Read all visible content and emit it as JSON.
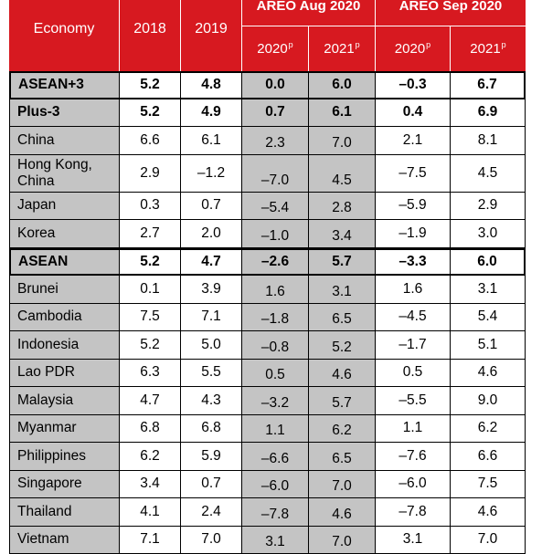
{
  "header": {
    "economy": "Economy",
    "y2018": "2018",
    "y2019": "2019",
    "group_aug": "AREO Aug 2020",
    "group_sep": "AREO Sep 2020",
    "sub_2020": "2020",
    "sub_2021": "2021",
    "proj_mark": "p"
  },
  "rows": [
    {
      "economy": "ASEAN+3",
      "y2018": "5.2",
      "y2019": "4.8",
      "aug2020": "0.0",
      "aug2021": "6.0",
      "sep2020": "–0.3",
      "sep2021": "6.7"
    },
    {
      "economy": "Plus-3",
      "y2018": "5.2",
      "y2019": "4.9",
      "aug2020": "0.7",
      "aug2021": "6.1",
      "sep2020": "0.4",
      "sep2021": "6.9"
    },
    {
      "economy": "China",
      "y2018": "6.6",
      "y2019": "6.1",
      "aug2020": "2.3",
      "aug2021": "7.0",
      "sep2020": "2.1",
      "sep2021": "8.1"
    },
    {
      "economy": "Hong Kong, China",
      "y2018": "2.9",
      "y2019": "–1.2",
      "aug2020": "–7.0",
      "aug2021": "4.5",
      "sep2020": "–7.5",
      "sep2021": "4.5"
    },
    {
      "economy": "Japan",
      "y2018": "0.3",
      "y2019": "0.7",
      "aug2020": "–5.4",
      "aug2021": "2.8",
      "sep2020": "–5.9",
      "sep2021": "2.9"
    },
    {
      "economy": "Korea",
      "y2018": "2.7",
      "y2019": "2.0",
      "aug2020": "–1.0",
      "aug2021": "3.4",
      "sep2020": "–1.9",
      "sep2021": "3.0"
    },
    {
      "economy": "ASEAN",
      "y2018": "5.2",
      "y2019": "4.7",
      "aug2020": "–2.6",
      "aug2021": "5.7",
      "sep2020": "–3.3",
      "sep2021": "6.0"
    },
    {
      "economy": "Brunei",
      "y2018": "0.1",
      "y2019": "3.9",
      "aug2020": "1.6",
      "aug2021": "3.1",
      "sep2020": "1.6",
      "sep2021": "3.1"
    },
    {
      "economy": "Cambodia",
      "y2018": "7.5",
      "y2019": "7.1",
      "aug2020": "–1.8",
      "aug2021": "6.5",
      "sep2020": "–4.5",
      "sep2021": "5.4"
    },
    {
      "economy": "Indonesia",
      "y2018": "5.2",
      "y2019": "5.0",
      "aug2020": "–0.8",
      "aug2021": "5.2",
      "sep2020": "–1.7",
      "sep2021": "5.1"
    },
    {
      "economy": "Lao PDR",
      "y2018": "6.3",
      "y2019": "5.5",
      "aug2020": "0.5",
      "aug2021": "4.6",
      "sep2020": "0.5",
      "sep2021": "4.6"
    },
    {
      "economy": "Malaysia",
      "y2018": "4.7",
      "y2019": "4.3",
      "aug2020": "–3.2",
      "aug2021": "5.7",
      "sep2020": "–5.5",
      "sep2021": "9.0"
    },
    {
      "economy": "Myanmar",
      "y2018": "6.8",
      "y2019": "6.8",
      "aug2020": "1.1",
      "aug2021": "6.2",
      "sep2020": "1.1",
      "sep2021": "6.2"
    },
    {
      "economy": "Philippines",
      "y2018": "6.2",
      "y2019": "5.9",
      "aug2020": "–6.6",
      "aug2021": "6.5",
      "sep2020": "–7.6",
      "sep2021": "6.6"
    },
    {
      "economy": "Singapore",
      "y2018": "3.4",
      "y2019": "0.7",
      "aug2020": "–6.0",
      "aug2021": "7.0",
      "sep2020": "–6.0",
      "sep2021": "7.5"
    },
    {
      "economy": "Thailand",
      "y2018": "4.1",
      "y2019": "2.4",
      "aug2020": "–7.8",
      "aug2021": "4.6",
      "sep2020": "–7.8",
      "sep2021": "4.6"
    },
    {
      "economy": "Vietnam",
      "y2018": "7.1",
      "y2019": "7.0",
      "aug2020": "3.1",
      "aug2021": "7.0",
      "sep2020": "3.1",
      "sep2021": "7.0"
    }
  ]
}
